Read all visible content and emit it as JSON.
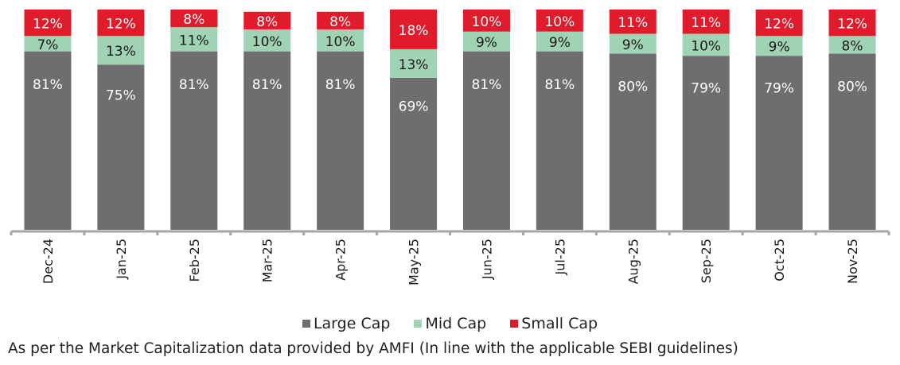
{
  "chart_data": {
    "type": "bar",
    "stacked": true,
    "title": "",
    "xlabel": "",
    "ylabel": "",
    "ylim": [
      0,
      100
    ],
    "grid": false,
    "legend_position": "bottom",
    "categories": [
      "Dec-24",
      "Jan-25",
      "Feb-25",
      "Mar-25",
      "Apr-25",
      "May-25",
      "Jun-25",
      "Jul-25",
      "Aug-25",
      "Sep-25",
      "Oct-25",
      "Nov-25"
    ],
    "series": [
      {
        "name": "Large Cap",
        "color": "#6e6e6e",
        "label_color": "#ffffff",
        "values": [
          81,
          75,
          81,
          81,
          81,
          69,
          81,
          81,
          80,
          79,
          79,
          80
        ]
      },
      {
        "name": "Mid Cap",
        "color": "#9fd3b3",
        "label_color": "#1a1a1a",
        "values": [
          7,
          13,
          11,
          10,
          10,
          13,
          9,
          9,
          9,
          10,
          9,
          8
        ]
      },
      {
        "name": "Small Cap",
        "color": "#e01b2b",
        "label_color": "#ffffff",
        "values": [
          12,
          12,
          8,
          8,
          8,
          18,
          10,
          10,
          11,
          11,
          12,
          12
        ]
      }
    ],
    "value_suffix": "%"
  },
  "legend": {
    "items": [
      {
        "label": "Large Cap",
        "color": "#6e6e6e"
      },
      {
        "label": "Mid Cap",
        "color": "#9fd3b3"
      },
      {
        "label": "Small Cap",
        "color": "#e01b2b"
      }
    ]
  },
  "footnote": "As per the Market Capitalization data provided by AMFI (In line with the applicable SEBI guidelines)"
}
